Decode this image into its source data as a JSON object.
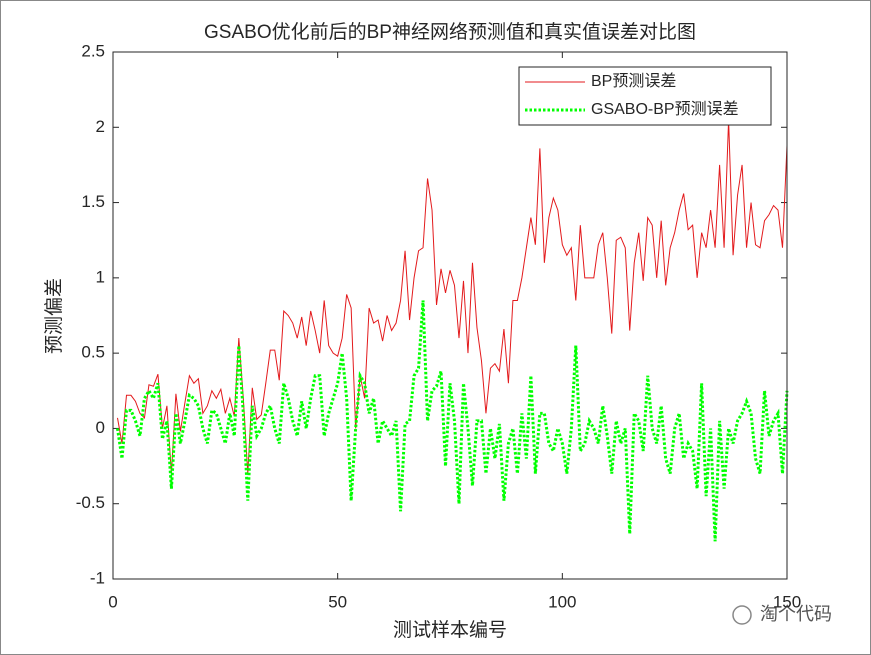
{
  "chart_data": {
    "type": "line",
    "title": "GSABO优化前后的BP神经网络预测值和真实值误差对比图",
    "xlabel": "测试样本编号",
    "ylabel": "预测偏差",
    "watermark": "淘个代码",
    "legend": "top-right",
    "x": [
      1,
      2,
      3,
      4,
      5,
      6,
      7,
      8,
      9,
      10,
      11,
      12,
      13,
      14,
      15,
      16,
      17,
      18,
      19,
      20,
      21,
      22,
      23,
      24,
      25,
      26,
      27,
      28,
      29,
      30,
      31,
      32,
      33,
      34,
      35,
      36,
      37,
      38,
      39,
      40,
      41,
      42,
      43,
      44,
      45,
      46,
      47,
      48,
      49,
      50,
      51,
      52,
      53,
      54,
      55,
      56,
      57,
      58,
      59,
      60,
      61,
      62,
      63,
      64,
      65,
      66,
      67,
      68,
      69,
      70,
      71,
      72,
      73,
      74,
      75,
      76,
      77,
      78,
      79,
      80,
      81,
      82,
      83,
      84,
      85,
      86,
      87,
      88,
      89,
      90,
      91,
      92,
      93,
      94,
      95,
      96,
      97,
      98,
      99,
      100,
      101,
      102,
      103,
      104,
      105,
      106,
      107,
      108,
      109,
      110,
      111,
      112,
      113,
      114,
      115,
      116,
      117,
      118,
      119,
      120,
      121,
      122,
      123,
      124,
      125,
      126,
      127,
      128,
      129,
      130,
      131,
      132,
      133,
      134,
      135,
      136,
      137,
      138,
      139,
      140,
      141,
      142,
      143,
      144,
      145,
      146,
      147,
      148,
      149,
      150
    ],
    "series": [
      {
        "name": "BP预测误差",
        "color": "#e31a1c",
        "style": "solid",
        "values": [
          0.07,
          -0.1,
          0.22,
          0.22,
          0.18,
          0.1,
          0.07,
          0.29,
          0.28,
          0.36,
          0.0,
          0.15,
          -0.3,
          0.23,
          -0.02,
          0.17,
          0.35,
          0.3,
          0.33,
          0.1,
          0.15,
          0.25,
          0.2,
          0.26,
          0.1,
          0.2,
          0.08,
          0.6,
          0.2,
          -0.3,
          0.27,
          0.06,
          0.09,
          0.3,
          0.52,
          0.52,
          0.32,
          0.78,
          0.75,
          0.7,
          0.6,
          0.74,
          0.55,
          0.78,
          0.65,
          0.5,
          0.85,
          0.55,
          0.5,
          0.48,
          0.6,
          0.89,
          0.8,
          0.0,
          0.35,
          0.2,
          0.8,
          0.7,
          0.72,
          0.58,
          0.75,
          0.65,
          0.7,
          0.85,
          1.18,
          0.72,
          1.0,
          1.18,
          1.2,
          1.66,
          1.45,
          0.82,
          1.06,
          0.9,
          1.05,
          0.95,
          0.6,
          0.98,
          0.5,
          1.1,
          0.67,
          0.45,
          0.1,
          0.4,
          0.43,
          0.38,
          0.66,
          0.3,
          0.85,
          0.85,
          1.0,
          1.2,
          1.4,
          1.22,
          1.86,
          1.1,
          1.4,
          1.53,
          1.45,
          1.22,
          1.15,
          1.2,
          0.85,
          1.35,
          1.0,
          1.0,
          1.0,
          1.22,
          1.3,
          1.0,
          0.63,
          1.25,
          1.27,
          1.2,
          0.65,
          1.1,
          1.3,
          0.98,
          1.4,
          1.35,
          1.0,
          1.38,
          0.95,
          1.2,
          1.3,
          1.45,
          1.56,
          1.32,
          1.35,
          1.0,
          1.3,
          1.2,
          1.45,
          1.2,
          1.75,
          1.2,
          2.05,
          1.15,
          1.55,
          1.75,
          1.2,
          1.5,
          1.22,
          1.2,
          1.38,
          1.42,
          1.48,
          1.45,
          1.2,
          1.88
        ]
      },
      {
        "name": "GSABO-BP预测误差",
        "color": "#00ff00",
        "style": "dotted",
        "values": [
          0.0,
          -0.2,
          0.12,
          0.12,
          0.05,
          -0.05,
          0.2,
          0.25,
          0.2,
          0.3,
          -0.07,
          0.05,
          -0.4,
          0.1,
          -0.1,
          0.05,
          0.22,
          0.2,
          0.15,
          0.0,
          -0.1,
          0.12,
          0.1,
          0.0,
          -0.1,
          0.1,
          -0.05,
          0.55,
          0.1,
          -0.48,
          0.15,
          -0.05,
          0.0,
          0.1,
          0.15,
          0.0,
          -0.1,
          0.3,
          0.2,
          0.05,
          -0.05,
          0.18,
          0.0,
          0.2,
          0.35,
          0.35,
          -0.05,
          0.1,
          0.2,
          0.3,
          0.5,
          0.2,
          -0.48,
          0.0,
          0.35,
          0.3,
          0.1,
          0.2,
          -0.1,
          0.05,
          0.0,
          -0.05,
          0.05,
          -0.55,
          0.03,
          0.05,
          0.35,
          0.4,
          0.85,
          0.05,
          0.25,
          0.28,
          0.38,
          -0.25,
          0.3,
          0.05,
          -0.5,
          0.3,
          0.0,
          -0.38,
          0.05,
          0.05,
          -0.3,
          0.0,
          -0.2,
          0.03,
          -0.48,
          -0.1,
          0.0,
          -0.3,
          0.1,
          -0.2,
          0.35,
          -0.3,
          0.1,
          0.1,
          -0.1,
          -0.15,
          0.0,
          -0.1,
          -0.3,
          0.0,
          0.55,
          -0.15,
          -0.1,
          0.05,
          0.0,
          -0.1,
          0.15,
          -0.05,
          -0.3,
          0.05,
          -0.1,
          0.0,
          -0.7,
          0.1,
          0.05,
          -0.15,
          0.35,
          0.0,
          -0.1,
          0.15,
          -0.2,
          -0.3,
          0.0,
          0.1,
          -0.2,
          -0.1,
          -0.15,
          -0.4,
          0.3,
          -0.45,
          0.0,
          -0.75,
          0.05,
          -0.4,
          0.0,
          -0.1,
          0.05,
          0.1,
          0.18,
          0.1,
          -0.2,
          -0.3,
          0.25,
          -0.05,
          0.05,
          0.1,
          -0.3,
          0.25
        ]
      }
    ],
    "xlim": [
      0,
      150
    ],
    "xticks": [
      0,
      50,
      100,
      150
    ],
    "ylim": [
      -1,
      2.5
    ],
    "yticks": [
      -1,
      -0.5,
      0,
      0.5,
      1,
      1.5,
      2,
      2.5
    ],
    "grid": false
  }
}
